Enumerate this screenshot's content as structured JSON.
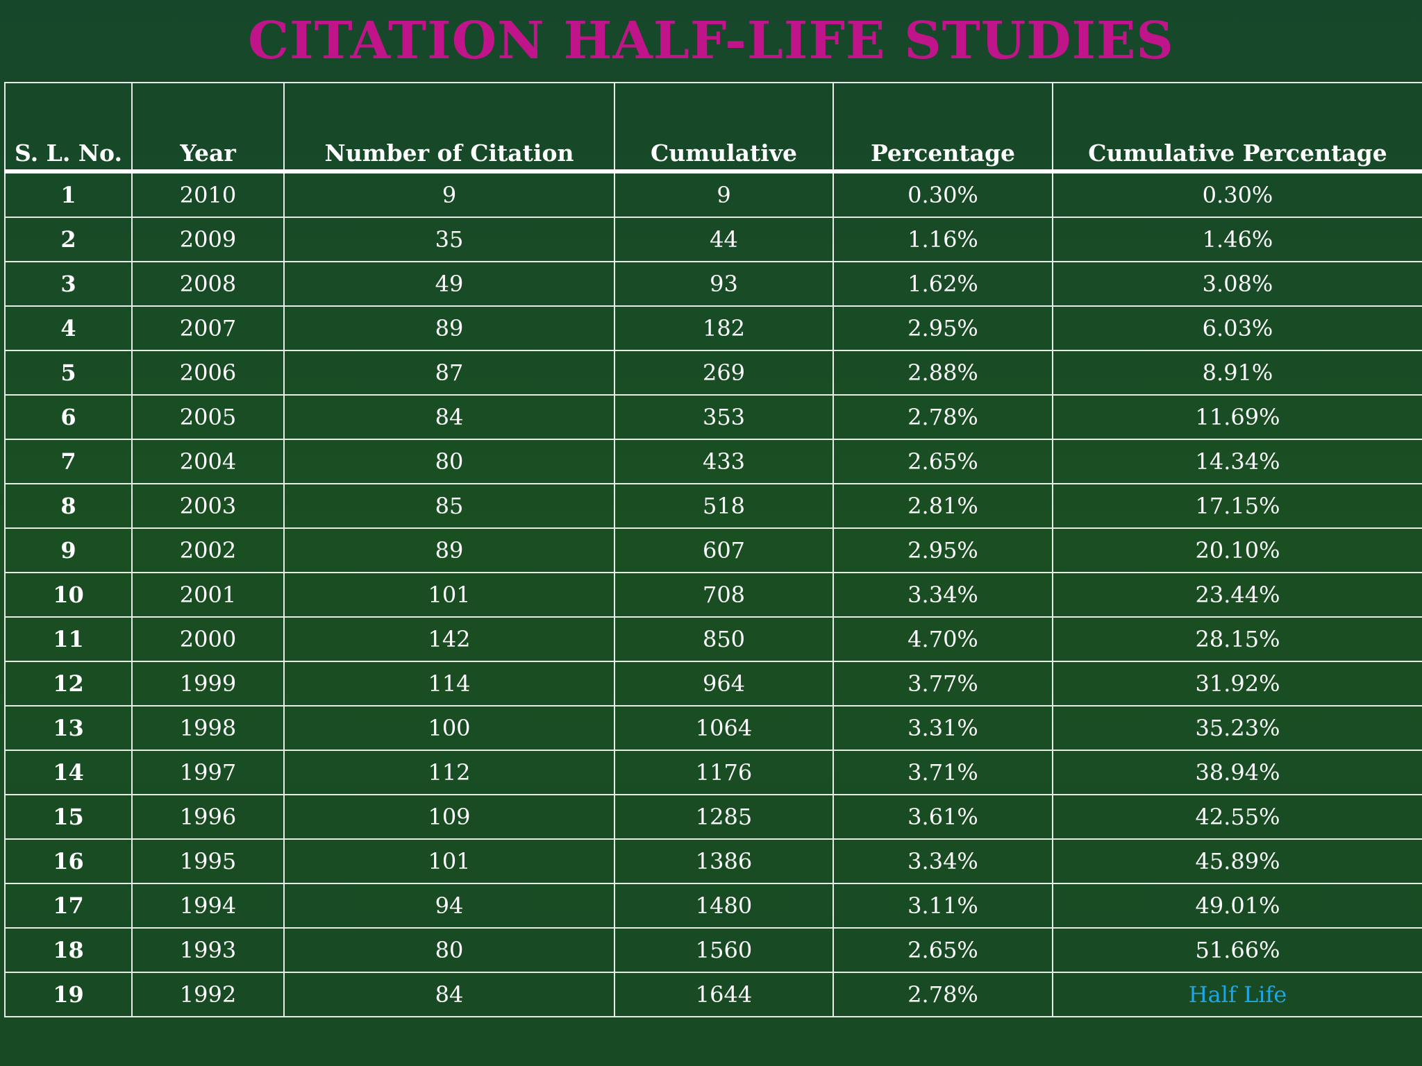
{
  "title": "CITATION HALF-LIFE STUDIES",
  "columns": [
    "S. L. No.",
    "Year",
    "Number of Citation",
    "Cumulative",
    "Percentage",
    "Cumulative Percentage"
  ],
  "rows": [
    [
      "1",
      "2010",
      "9",
      "9",
      "0.30%",
      "0.30%"
    ],
    [
      "2",
      "2009",
      "35",
      "44",
      "1.16%",
      "1.46%"
    ],
    [
      "3",
      "2008",
      "49",
      "93",
      "1.62%",
      "3.08%"
    ],
    [
      "4",
      "2007",
      "89",
      "182",
      "2.95%",
      "6.03%"
    ],
    [
      "5",
      "2006",
      "87",
      "269",
      "2.88%",
      "8.91%"
    ],
    [
      "6",
      "2005",
      "84",
      "353",
      "2.78%",
      "11.69%"
    ],
    [
      "7",
      "2004",
      "80",
      "433",
      "2.65%",
      "14.34%"
    ],
    [
      "8",
      "2003",
      "85",
      "518",
      "2.81%",
      "17.15%"
    ],
    [
      "9",
      "2002",
      "89",
      "607",
      "2.95%",
      "20.10%"
    ],
    [
      "10",
      "2001",
      "101",
      "708",
      "3.34%",
      "23.44%"
    ],
    [
      "11",
      "2000",
      "142",
      "850",
      "4.70%",
      "28.15%"
    ],
    [
      "12",
      "1999",
      "114",
      "964",
      "3.77%",
      "31.92%"
    ],
    [
      "13",
      "1998",
      "100",
      "1064",
      "3.31%",
      "35.23%"
    ],
    [
      "14",
      "1997",
      "112",
      "1176",
      "3.71%",
      "38.94%"
    ],
    [
      "15",
      "1996",
      "109",
      "1285",
      "3.61%",
      "42.55%"
    ],
    [
      "16",
      "1995",
      "101",
      "1386",
      "3.34%",
      "45.89%"
    ],
    [
      "17",
      "1994",
      "94",
      "1480",
      "3.11%",
      "49.01%"
    ],
    [
      "18",
      "1993",
      "80",
      "1560",
      "2.65%",
      "51.66%"
    ],
    [
      "19",
      "1992",
      "84",
      "1644",
      "2.78%",
      "Half Life"
    ]
  ],
  "colors": {
    "background": "#184a24",
    "title": "#c0158a",
    "text": "#ffffff",
    "grid": "#e6ece6",
    "half_life_note": "#1ea7e6"
  }
}
